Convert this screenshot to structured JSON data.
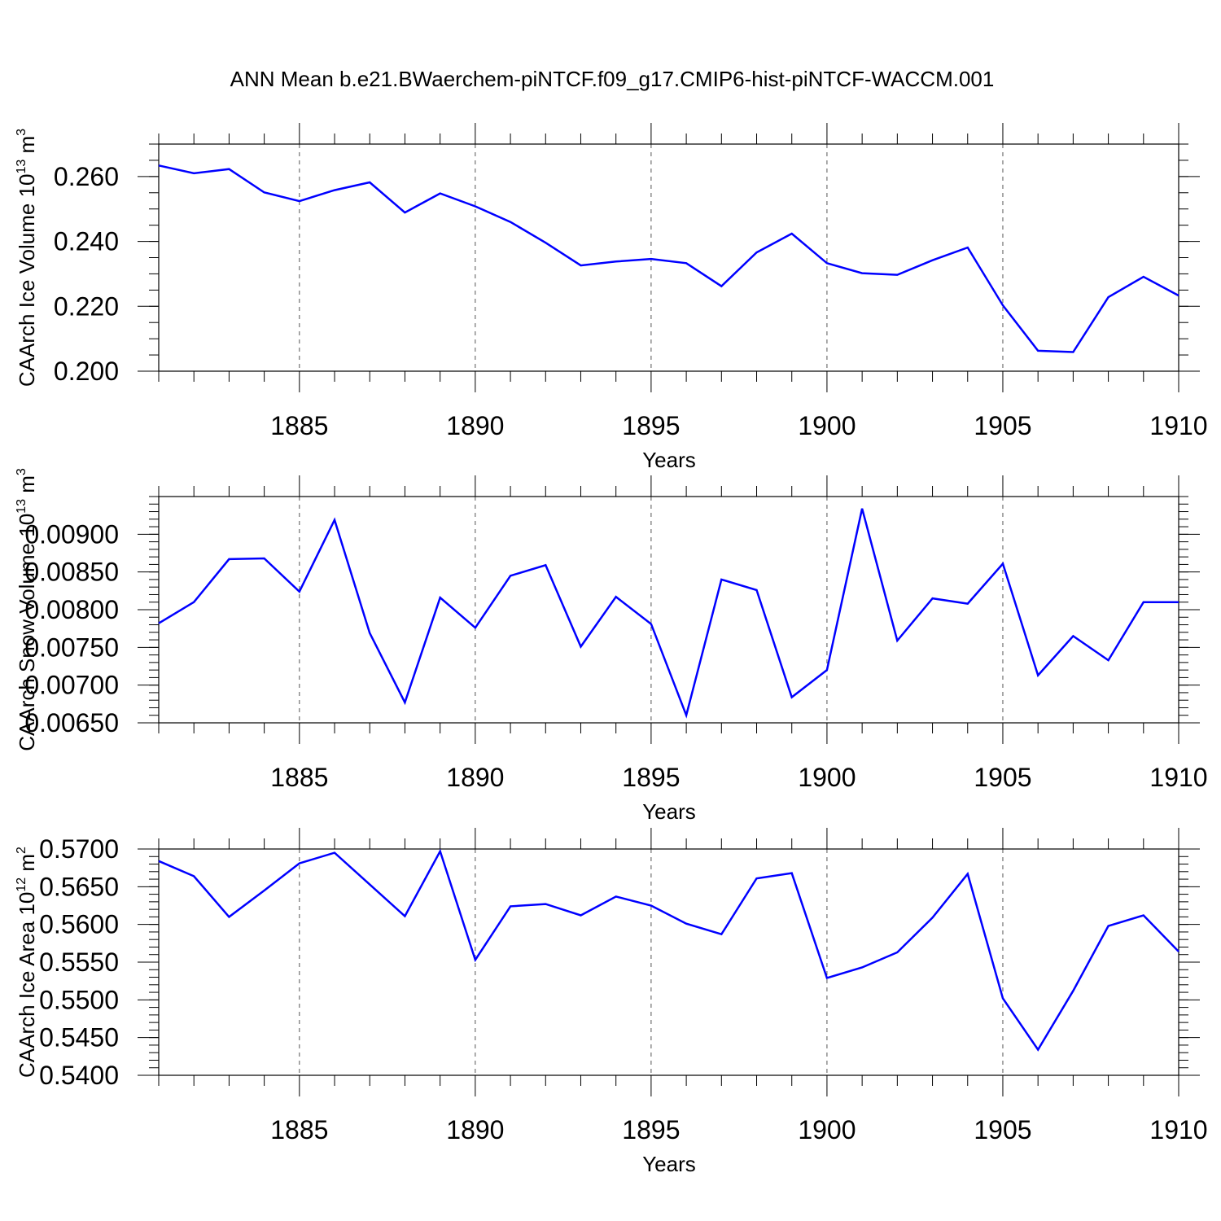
{
  "title": "ANN Mean b.e21.BWaerchem-piNTCF.f09_g17.CMIP6-hist-piNTCF-WACCM.001",
  "colors": {
    "line": "#0000ff",
    "axis": "#000000",
    "grid": "#555555"
  },
  "chart_data": [
    {
      "type": "line",
      "ylabel": "CAArch Ice Volume 10",
      "ylabel_exp": "13",
      "ylabel_unit": " m",
      "ylabel_unit_exp": "3",
      "xlabel": "Years",
      "xlim": [
        1881,
        1910
      ],
      "ylim": [
        0.2,
        0.27
      ],
      "yticks": [
        0.2,
        0.22,
        0.24,
        0.26
      ],
      "yticklabels": [
        "0.200",
        "0.220",
        "0.240",
        "0.260"
      ],
      "yminor_step": 0.005,
      "xticks": [
        1885,
        1890,
        1895,
        1900,
        1905,
        1910
      ],
      "xticklabels": [
        "1885",
        "1890",
        "1895",
        "1900",
        "1905",
        "1910"
      ],
      "x": [
        1881,
        1882,
        1883,
        1884,
        1885,
        1886,
        1887,
        1888,
        1889,
        1890,
        1891,
        1892,
        1893,
        1894,
        1895,
        1896,
        1897,
        1898,
        1899,
        1900,
        1901,
        1902,
        1903,
        1904,
        1905,
        1906,
        1907,
        1908,
        1909,
        1910
      ],
      "series": [
        {
          "name": "CAArch Ice Volume",
          "values": [
            0.2634,
            0.261,
            0.2623,
            0.2551,
            0.2524,
            0.2558,
            0.2582,
            0.2489,
            0.2548,
            0.2508,
            0.246,
            0.2396,
            0.2326,
            0.2338,
            0.2346,
            0.2333,
            0.2262,
            0.2366,
            0.2424,
            0.2333,
            0.2302,
            0.2297,
            0.2342,
            0.2381,
            0.2203,
            0.2063,
            0.2059,
            0.2228,
            0.2291,
            0.2233
          ]
        }
      ]
    },
    {
      "type": "line",
      "ylabel": "CAArch Snow Volume 10",
      "ylabel_exp": "13",
      "ylabel_unit": " m",
      "ylabel_unit_exp": "3",
      "xlabel": "Years",
      "xlim": [
        1881,
        1910
      ],
      "ylim": [
        0.0065,
        0.0095
      ],
      "yticks": [
        0.0065,
        0.007,
        0.0075,
        0.008,
        0.0085,
        0.009
      ],
      "yticklabels": [
        "0.00650",
        "0.00700",
        "0.00750",
        "0.00800",
        "0.00850",
        "0.00900"
      ],
      "yminor_step": 0.0001,
      "xticks": [
        1885,
        1890,
        1895,
        1900,
        1905,
        1910
      ],
      "xticklabels": [
        "1885",
        "1890",
        "1895",
        "1900",
        "1905",
        "1910"
      ],
      "x": [
        1881,
        1882,
        1883,
        1884,
        1885,
        1886,
        1887,
        1888,
        1889,
        1890,
        1891,
        1892,
        1893,
        1894,
        1895,
        1896,
        1897,
        1898,
        1899,
        1900,
        1901,
        1902,
        1903,
        1904,
        1905,
        1906,
        1907,
        1908,
        1909,
        1910
      ],
      "series": [
        {
          "name": "CAArch Snow Volume",
          "values": [
            0.00782,
            0.0081,
            0.00867,
            0.00868,
            0.00824,
            0.00919,
            0.00769,
            0.00677,
            0.00816,
            0.00776,
            0.00845,
            0.00859,
            0.00751,
            0.00817,
            0.00781,
            0.0066,
            0.0084,
            0.00826,
            0.00684,
            0.0072,
            0.00934,
            0.00759,
            0.00815,
            0.00808,
            0.00861,
            0.00713,
            0.00765,
            0.00733,
            0.0081,
            0.0081
          ]
        }
      ]
    },
    {
      "type": "line",
      "ylabel": "CAArch Ice Area 10",
      "ylabel_exp": "12",
      "ylabel_unit": " m",
      "ylabel_unit_exp": "2",
      "xlabel": "Years",
      "xlim": [
        1881,
        1910
      ],
      "ylim": [
        0.54,
        0.57
      ],
      "yticks": [
        0.54,
        0.545,
        0.55,
        0.555,
        0.56,
        0.565,
        0.57
      ],
      "yticklabels": [
        "0.5400",
        "0.5450",
        "0.5500",
        "0.5550",
        "0.5600",
        "0.5650",
        "0.5700"
      ],
      "yminor_step": 0.001,
      "xticks": [
        1885,
        1890,
        1895,
        1900,
        1905,
        1910
      ],
      "xticklabels": [
        "1885",
        "1890",
        "1895",
        "1900",
        "1905",
        "1910"
      ],
      "x": [
        1881,
        1882,
        1883,
        1884,
        1885,
        1886,
        1887,
        1888,
        1889,
        1890,
        1891,
        1892,
        1893,
        1894,
        1895,
        1896,
        1897,
        1898,
        1899,
        1900,
        1901,
        1902,
        1903,
        1904,
        1905,
        1906,
        1907,
        1908,
        1909,
        1910
      ],
      "series": [
        {
          "name": "CAArch Ice Area",
          "values": [
            0.5684,
            0.5664,
            0.561,
            0.5645,
            0.5681,
            0.5695,
            0.5653,
            0.5611,
            0.5697,
            0.5553,
            0.5624,
            0.5627,
            0.5612,
            0.5637,
            0.5625,
            0.5601,
            0.5587,
            0.5661,
            0.5668,
            0.5529,
            0.5543,
            0.5563,
            0.5609,
            0.5667,
            0.5502,
            0.5434,
            0.5512,
            0.5598,
            0.5612,
            0.5564
          ]
        }
      ]
    }
  ]
}
